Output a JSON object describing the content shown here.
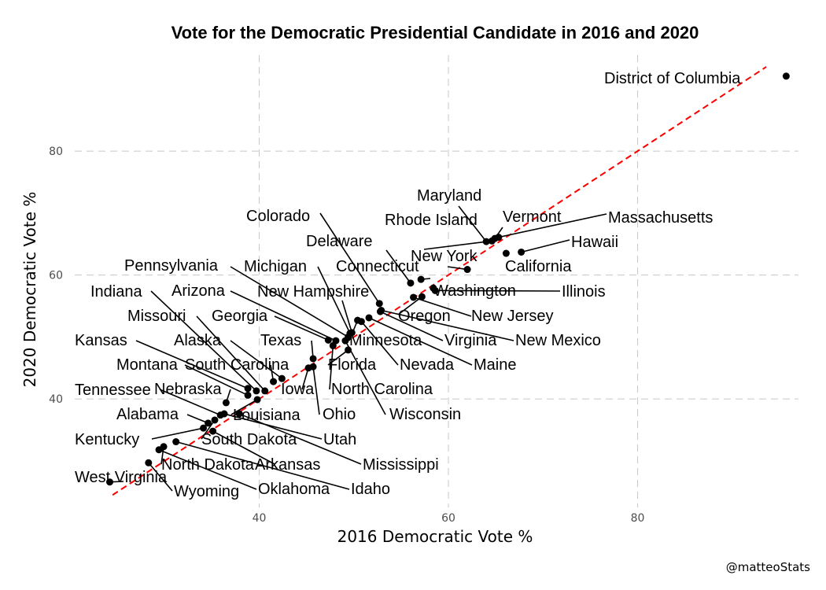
{
  "chart_data": {
    "type": "scatter",
    "title": "Vote for the Democratic Presidential Candidate in 2016 and 2020",
    "xlabel": "2016 Democratic Vote %",
    "ylabel": "2020 Democratic Vote %",
    "xlim": [
      20.5,
      97
    ],
    "ylim": [
      22.5,
      95.5
    ],
    "xticks": [
      40,
      60,
      80
    ],
    "yticks": [
      40,
      60,
      80
    ],
    "grid": true,
    "reference_line": "y = x",
    "reference_line_color": "#ff0000",
    "point_color": "#000000",
    "points": [
      {
        "label": "District of Columbia",
        "x": 95.7,
        "y": 92.1
      },
      {
        "label": "Maryland",
        "x": 64.0,
        "y": 65.4
      },
      {
        "label": "Vermont",
        "x": 64.9,
        "y": 65.9
      },
      {
        "label": "Massachusetts",
        "x": 65.3,
        "y": 66.1
      },
      {
        "label": "Rhode Island",
        "x": 64.6,
        "y": 65.5
      },
      {
        "label": "Hawaii",
        "x": 67.7,
        "y": 63.7
      },
      {
        "label": "California",
        "x": 66.1,
        "y": 63.5
      },
      {
        "label": "New York",
        "x": 62.0,
        "y": 60.9
      },
      {
        "label": "Delaware",
        "x": 56.0,
        "y": 58.7
      },
      {
        "label": "Connecticut",
        "x": 57.1,
        "y": 59.3
      },
      {
        "label": "Washington",
        "x": 58.4,
        "y": 57.9
      },
      {
        "label": "Illinois",
        "x": 58.6,
        "y": 57.5
      },
      {
        "label": "New Jersey",
        "x": 56.3,
        "y": 56.4
      },
      {
        "label": "Oregon",
        "x": 57.2,
        "y": 56.5
      },
      {
        "label": "New Mexico",
        "x": 52.9,
        "y": 54.3
      },
      {
        "label": "Virginia",
        "x": 52.8,
        "y": 54.1
      },
      {
        "label": "Colorado",
        "x": 52.7,
        "y": 55.4
      },
      {
        "label": "Maine",
        "x": 51.6,
        "y": 53.1
      },
      {
        "label": "Nevada",
        "x": 50.8,
        "y": 52.5
      },
      {
        "label": "Minnesota",
        "x": 50.4,
        "y": 52.7
      },
      {
        "label": "New Hampshire",
        "x": 49.8,
        "y": 50.7
      },
      {
        "label": "Michigan",
        "x": 49.6,
        "y": 50.6
      },
      {
        "label": "Pennsylvania",
        "x": 49.4,
        "y": 50.0
      },
      {
        "label": "Wisconsin",
        "x": 49.1,
        "y": 49.4
      },
      {
        "label": "Arizona",
        "x": 48.1,
        "y": 49.4
      },
      {
        "label": "Georgia",
        "x": 47.3,
        "y": 49.5
      },
      {
        "label": "North Carolina",
        "x": 47.8,
        "y": 48.6
      },
      {
        "label": "Florida",
        "x": 49.4,
        "y": 47.9
      },
      {
        "label": "Texas",
        "x": 45.7,
        "y": 46.5
      },
      {
        "label": "Ohio",
        "x": 45.7,
        "y": 45.2
      },
      {
        "label": "Iowa",
        "x": 45.2,
        "y": 45.0
      },
      {
        "label": "Alaska",
        "x": 42.4,
        "y": 43.3
      },
      {
        "label": "South Carolina",
        "x": 41.5,
        "y": 42.8
      },
      {
        "label": "Missouri",
        "x": 40.6,
        "y": 41.3
      },
      {
        "label": "Indiana",
        "x": 39.7,
        "y": 41.3
      },
      {
        "label": "Kansas",
        "x": 38.8,
        "y": 41.7
      },
      {
        "label": "Montana",
        "x": 38.8,
        "y": 40.6
      },
      {
        "label": "Louisiana",
        "x": 39.8,
        "y": 39.9
      },
      {
        "label": "Mississippi",
        "x": 37.9,
        "y": 37.6
      },
      {
        "label": "Nebraska",
        "x": 36.5,
        "y": 39.4
      },
      {
        "label": "Utah",
        "x": 36.3,
        "y": 37.6
      },
      {
        "label": "Tennessee",
        "x": 35.9,
        "y": 37.4
      },
      {
        "label": "South Dakota",
        "x": 35.3,
        "y": 36.6
      },
      {
        "label": "Alabama",
        "x": 34.6,
        "y": 36.1
      },
      {
        "label": "Kentucky",
        "x": 34.1,
        "y": 35.3
      },
      {
        "label": "Arkansas",
        "x": 35.1,
        "y": 34.8
      },
      {
        "label": "Idaho",
        "x": 31.2,
        "y": 33.1
      },
      {
        "label": "North Dakota",
        "x": 29.9,
        "y": 32.3
      },
      {
        "label": "Oklahoma",
        "x": 29.4,
        "y": 31.8
      },
      {
        "label": "Wyoming",
        "x": 28.3,
        "y": 29.7
      },
      {
        "label": "West Virginia",
        "x": 24.2,
        "y": 26.6
      }
    ]
  },
  "caption": "@matteoStats"
}
